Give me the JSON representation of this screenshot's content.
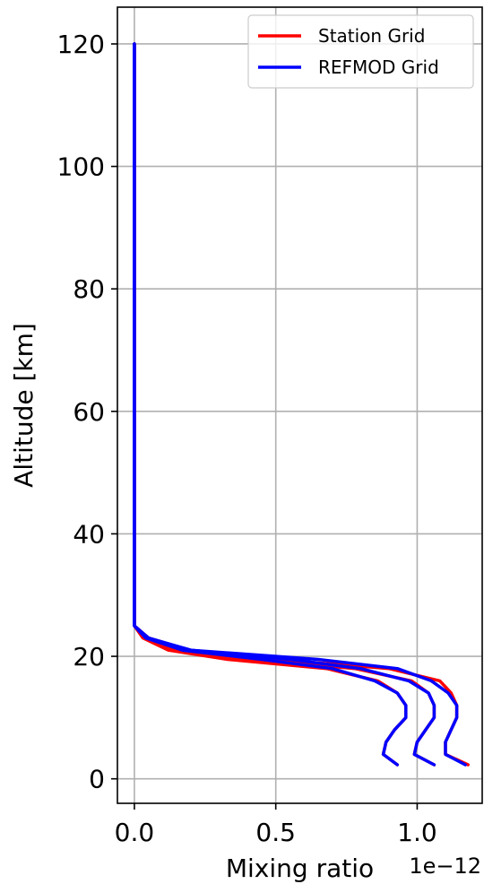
{
  "chart_data": {
    "type": "line",
    "xlabel": "Mixing ratio",
    "x_offset_text": "1e−12",
    "ylabel": "Altitude [km]",
    "xlim": [
      -0.06,
      1.23
    ],
    "ylim": [
      -4,
      126
    ],
    "xticks": [
      {
        "value": 0.0,
        "label": "0.0"
      },
      {
        "value": 0.5,
        "label": "0.5"
      },
      {
        "value": 1.0,
        "label": "1.0"
      }
    ],
    "yticks": [
      {
        "value": 0,
        "label": "0"
      },
      {
        "value": 20,
        "label": "20"
      },
      {
        "value": 40,
        "label": "40"
      },
      {
        "value": 60,
        "label": "60"
      },
      {
        "value": 80,
        "label": "80"
      },
      {
        "value": 100,
        "label": "100"
      },
      {
        "value": 120,
        "label": "120"
      }
    ],
    "grid": true,
    "legend_position": "top-right",
    "series": [
      {
        "name": "Station Grid",
        "color": "#ff0000",
        "profiles": [
          {
            "x": [
              0.93,
              0.88,
              0.89,
              0.92,
              0.96,
              0.96,
              0.93,
              0.86,
              0.68,
              0.33,
              0.12,
              0.03,
              0.0,
              0.0,
              0.0,
              0.0,
              0.0,
              0.0,
              0.0
            ],
            "y": [
              2.3,
              4,
              6,
              8,
              10,
              12,
              14,
              16,
              18,
              19.5,
              21,
              23,
              25,
              27,
              40,
              60,
              80,
              100,
              120
            ]
          },
          {
            "x": [
              1.06,
              0.99,
              1.0,
              1.03,
              1.06,
              1.06,
              1.04,
              0.98,
              0.78,
              0.42,
              0.15,
              0.04,
              0.0,
              0.0,
              0.0,
              0.0,
              0.0,
              0.0,
              0.0
            ],
            "y": [
              2.3,
              4,
              6,
              8,
              10,
              12,
              14,
              16,
              18,
              19.5,
              21,
              23,
              25,
              27,
              40,
              60,
              80,
              100,
              120
            ]
          },
          {
            "x": [
              1.18,
              1.1,
              1.1,
              1.12,
              1.14,
              1.14,
              1.12,
              1.08,
              0.9,
              0.5,
              0.19,
              0.05,
              0.0,
              0.0,
              0.0,
              0.0,
              0.0,
              0.0,
              0.0
            ],
            "y": [
              2.3,
              4,
              6,
              8,
              10,
              12,
              14,
              16,
              18,
              19.5,
              21,
              23,
              25,
              27,
              40,
              60,
              80,
              100,
              120
            ]
          }
        ]
      },
      {
        "name": "REFMOD Grid",
        "color": "#0000ff",
        "profiles": [
          {
            "x": [
              0.93,
              0.88,
              0.89,
              0.92,
              0.96,
              0.96,
              0.93,
              0.85,
              0.7,
              0.45,
              0.17,
              0.04,
              0.0,
              0.0,
              0.0,
              0.0,
              0.0,
              0.0,
              0.0
            ],
            "y": [
              2.3,
              4,
              6,
              8,
              10,
              12,
              14,
              16,
              18,
              19.5,
              21,
              23,
              25,
              27,
              40,
              60,
              80,
              100,
              120
            ]
          },
          {
            "x": [
              1.06,
              0.99,
              1.0,
              1.03,
              1.06,
              1.06,
              1.04,
              0.97,
              0.8,
              0.55,
              0.2,
              0.04,
              0.0,
              0.0,
              0.0,
              0.0,
              0.0,
              0.0,
              0.0
            ],
            "y": [
              2.3,
              4,
              6,
              8,
              10,
              12,
              14,
              16,
              18,
              19.5,
              21,
              23,
              25,
              27,
              40,
              60,
              80,
              100,
              120
            ]
          },
          {
            "x": [
              1.17,
              1.1,
              1.1,
              1.12,
              1.14,
              1.14,
              1.11,
              1.05,
              0.93,
              0.65,
              0.2,
              0.05,
              0.0,
              0.0,
              0.0,
              0.0,
              0.0,
              0.0,
              0.0
            ],
            "y": [
              2.3,
              4,
              6,
              8,
              10,
              12,
              14,
              16,
              18,
              19.5,
              21,
              23,
              25,
              27,
              40,
              60,
              80,
              100,
              120
            ]
          }
        ]
      }
    ]
  }
}
